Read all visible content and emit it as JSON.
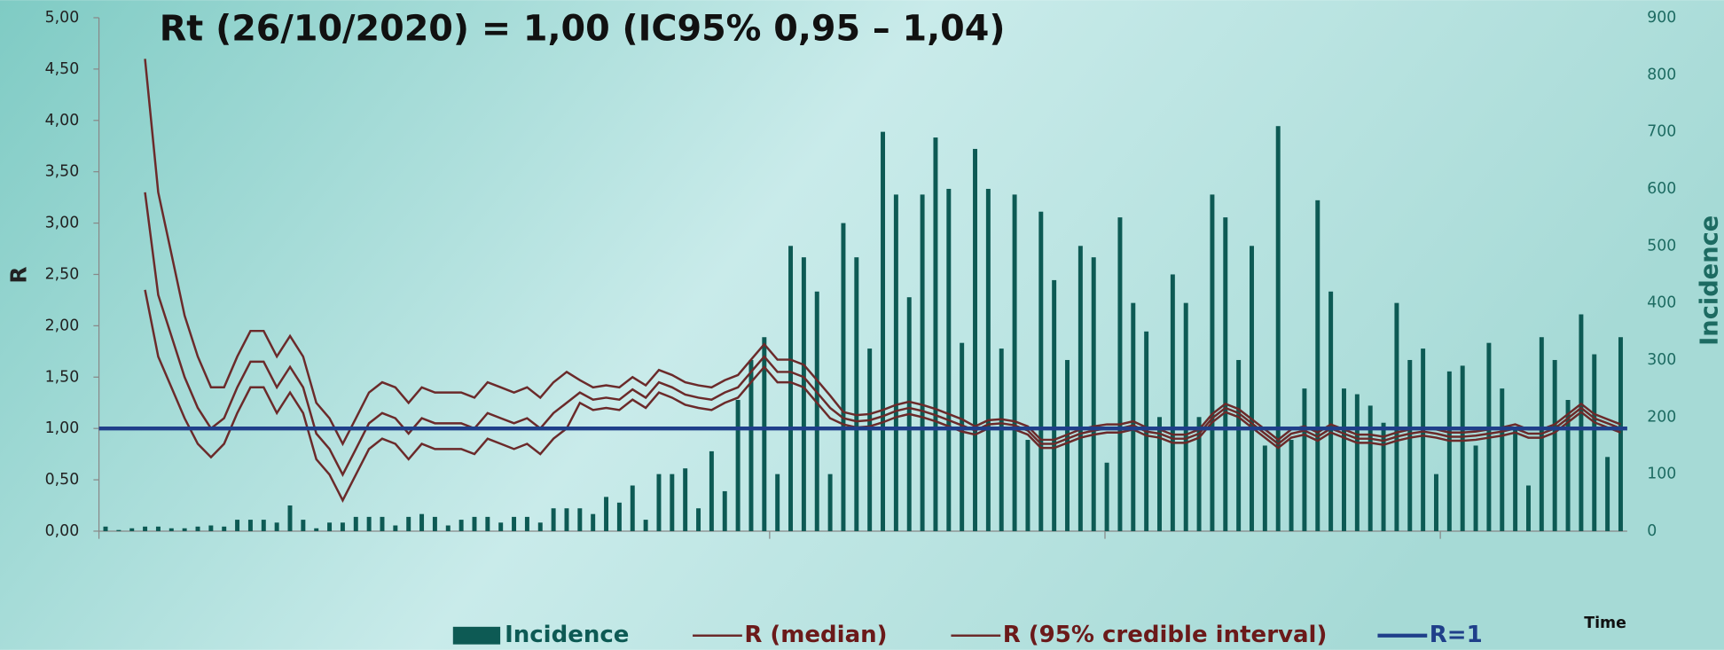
{
  "chart_data": {
    "type": "combo",
    "title": "Rt (26/10/2020) = 1,00 (IC95% 0,95 – 1,04)",
    "y_label": "R",
    "y2_label": "Incidence",
    "x_label": "Time",
    "categories": [
      null,
      null,
      null,
      null,
      null,
      null,
      null,
      null,
      null,
      null,
      null,
      null,
      null,
      null,
      null,
      null,
      null,
      null,
      null,
      null,
      null,
      null,
      null,
      null,
      null,
      null,
      null,
      null,
      null,
      null,
      null,
      null,
      null,
      null,
      null,
      null,
      null,
      null,
      null,
      null,
      null,
      null,
      null,
      null,
      null,
      null,
      null,
      null,
      null,
      null,
      null,
      null,
      null,
      null,
      null,
      null,
      null,
      null,
      null,
      null,
      null,
      null,
      null,
      null,
      null,
      null,
      null,
      null,
      null,
      null,
      null,
      null,
      null,
      null,
      null,
      null,
      null,
      null,
      null,
      null,
      null,
      null,
      null,
      null,
      null,
      null,
      null,
      null,
      null,
      null,
      null,
      null,
      null,
      null,
      null,
      null,
      null,
      null,
      null,
      null,
      null,
      null,
      null,
      null,
      null,
      null,
      null,
      null,
      null,
      null,
      null,
      null,
      null,
      null,
      null,
      null
    ],
    "ylim": [
      0,
      5
    ],
    "yticks": [
      {
        "value": 0,
        "label": "0,00"
      },
      {
        "value": 0.5,
        "label": "0,50"
      },
      {
        "value": 1,
        "label": "1,00"
      },
      {
        "value": 1.5,
        "label": "1,50"
      },
      {
        "value": 2,
        "label": "2,00"
      },
      {
        "value": 2.5,
        "label": "2,50"
      },
      {
        "value": 3,
        "label": "3,00"
      },
      {
        "value": 3.5,
        "label": "3,50"
      },
      {
        "value": 4,
        "label": "4,00"
      },
      {
        "value": 4.5,
        "label": "4,50"
      },
      {
        "value": 5,
        "label": "5,00"
      }
    ],
    "y2lim": [
      0,
      900
    ],
    "y2ticks": [
      0,
      100,
      200,
      300,
      400,
      500,
      600,
      700,
      800,
      900
    ],
    "series": [
      {
        "name": "Incidence",
        "kind": "bar",
        "axis": "y2",
        "color": "#0d5a54",
        "values": [
          8,
          2,
          5,
          8,
          8,
          5,
          5,
          8,
          10,
          8,
          20,
          20,
          20,
          15,
          45,
          20,
          5,
          15,
          15,
          25,
          25,
          25,
          10,
          25,
          30,
          25,
          10,
          20,
          25,
          25,
          15,
          25,
          25,
          15,
          40,
          40,
          40,
          30,
          60,
          50,
          80,
          20,
          100,
          100,
          110,
          40,
          140,
          70,
          230,
          300,
          340,
          100,
          500,
          480,
          420,
          100,
          540,
          480,
          320,
          700,
          590,
          410,
          590,
          690,
          600,
          330,
          670,
          600,
          320,
          590,
          160,
          560,
          440,
          300,
          500,
          480,
          120,
          550,
          400,
          350,
          200,
          450,
          400,
          200,
          590,
          550,
          300,
          500,
          150,
          710,
          160,
          250,
          580,
          420,
          250,
          240,
          220,
          190,
          400,
          300,
          320,
          100,
          280,
          290,
          150,
          330,
          250,
          180,
          80,
          340,
          300,
          230,
          380,
          310,
          130,
          340
        ]
      },
      {
        "name": "R (median)",
        "kind": "line",
        "color": "#6b2a2a",
        "values": [
          null,
          null,
          null,
          3.3,
          2.3,
          1.9,
          1.5,
          1.2,
          1.0,
          1.1,
          1.4,
          1.65,
          1.65,
          1.4,
          1.6,
          1.4,
          0.95,
          0.8,
          0.55,
          0.8,
          1.05,
          1.15,
          1.1,
          0.95,
          1.1,
          1.05,
          1.05,
          1.05,
          1.0,
          1.15,
          1.1,
          1.05,
          1.1,
          1.0,
          1.15,
          1.25,
          1.35,
          1.28,
          1.3,
          1.28,
          1.38,
          1.3,
          1.45,
          1.4,
          1.33,
          1.3,
          1.28,
          1.35,
          1.4,
          1.55,
          1.7,
          1.55,
          1.55,
          1.5,
          1.35,
          1.2,
          1.1,
          1.07,
          1.08,
          1.12,
          1.17,
          1.2,
          1.17,
          1.13,
          1.08,
          1.03,
          0.98,
          1.04,
          1.05,
          1.03,
          0.98,
          0.85,
          0.85,
          0.9,
          0.95,
          0.98,
          1.0,
          1.0,
          1.03,
          0.97,
          0.95,
          0.9,
          0.9,
          0.95,
          1.1,
          1.2,
          1.15,
          1.05,
          0.95,
          0.85,
          0.95,
          0.98,
          0.92,
          1.0,
          0.95,
          0.9,
          0.9,
          0.88,
          0.92,
          0.95,
          0.97,
          0.95,
          0.92,
          0.92,
          0.93,
          0.95,
          0.97,
          1.0,
          0.95,
          0.95,
          1.0,
          1.1,
          1.2,
          1.1,
          1.05,
          1.0
        ]
      },
      {
        "name": "R (95% credible interval)",
        "kind": "band",
        "color": "#6b2a2a",
        "upper": [
          null,
          null,
          null,
          4.6,
          3.3,
          2.7,
          2.1,
          1.7,
          1.4,
          1.4,
          1.7,
          1.95,
          1.95,
          1.7,
          1.9,
          1.7,
          1.25,
          1.1,
          0.85,
          1.1,
          1.35,
          1.45,
          1.4,
          1.25,
          1.4,
          1.35,
          1.35,
          1.35,
          1.3,
          1.45,
          1.4,
          1.35,
          1.4,
          1.3,
          1.45,
          1.55,
          1.47,
          1.4,
          1.42,
          1.4,
          1.5,
          1.42,
          1.57,
          1.52,
          1.45,
          1.42,
          1.4,
          1.47,
          1.52,
          1.67,
          1.82,
          1.67,
          1.67,
          1.62,
          1.47,
          1.32,
          1.16,
          1.13,
          1.14,
          1.18,
          1.23,
          1.26,
          1.23,
          1.19,
          1.14,
          1.09,
          1.02,
          1.08,
          1.09,
          1.07,
          1.02,
          0.89,
          0.89,
          0.94,
          0.99,
          1.02,
          1.04,
          1.04,
          1.07,
          1.01,
          0.99,
          0.94,
          0.94,
          0.99,
          1.14,
          1.24,
          1.19,
          1.09,
          0.99,
          0.89,
          0.99,
          1.02,
          0.96,
          1.04,
          0.99,
          0.94,
          0.94,
          0.92,
          0.96,
          0.99,
          1.01,
          0.99,
          0.96,
          0.96,
          0.97,
          0.99,
          1.01,
          1.04,
          0.99,
          0.99,
          1.04,
          1.14,
          1.24,
          1.14,
          1.09,
          1.04
        ],
        "lower": [
          null,
          null,
          null,
          2.35,
          1.7,
          1.4,
          1.1,
          0.85,
          0.72,
          0.85,
          1.15,
          1.4,
          1.4,
          1.15,
          1.35,
          1.15,
          0.7,
          0.55,
          0.3,
          0.55,
          0.8,
          0.9,
          0.85,
          0.7,
          0.85,
          0.8,
          0.8,
          0.8,
          0.75,
          0.9,
          0.85,
          0.8,
          0.85,
          0.75,
          0.9,
          1.0,
          1.25,
          1.18,
          1.2,
          1.18,
          1.28,
          1.2,
          1.35,
          1.3,
          1.23,
          1.2,
          1.18,
          1.25,
          1.3,
          1.45,
          1.6,
          1.45,
          1.45,
          1.4,
          1.25,
          1.1,
          1.04,
          1.01,
          1.02,
          1.06,
          1.11,
          1.14,
          1.11,
          1.07,
          1.02,
          0.97,
          0.94,
          1.0,
          1.01,
          0.99,
          0.94,
          0.81,
          0.81,
          0.86,
          0.91,
          0.94,
          0.96,
          0.96,
          0.99,
          0.93,
          0.91,
          0.86,
          0.86,
          0.91,
          1.06,
          1.16,
          1.11,
          1.01,
          0.91,
          0.81,
          0.91,
          0.94,
          0.88,
          0.96,
          0.91,
          0.86,
          0.86,
          0.84,
          0.88,
          0.91,
          0.93,
          0.91,
          0.88,
          0.88,
          0.89,
          0.91,
          0.93,
          0.96,
          0.91,
          0.91,
          0.96,
          1.06,
          1.16,
          1.06,
          1.01,
          0.96
        ]
      },
      {
        "name": "R=1",
        "kind": "hline",
        "color": "#1f3f8a",
        "value": 1
      }
    ]
  }
}
